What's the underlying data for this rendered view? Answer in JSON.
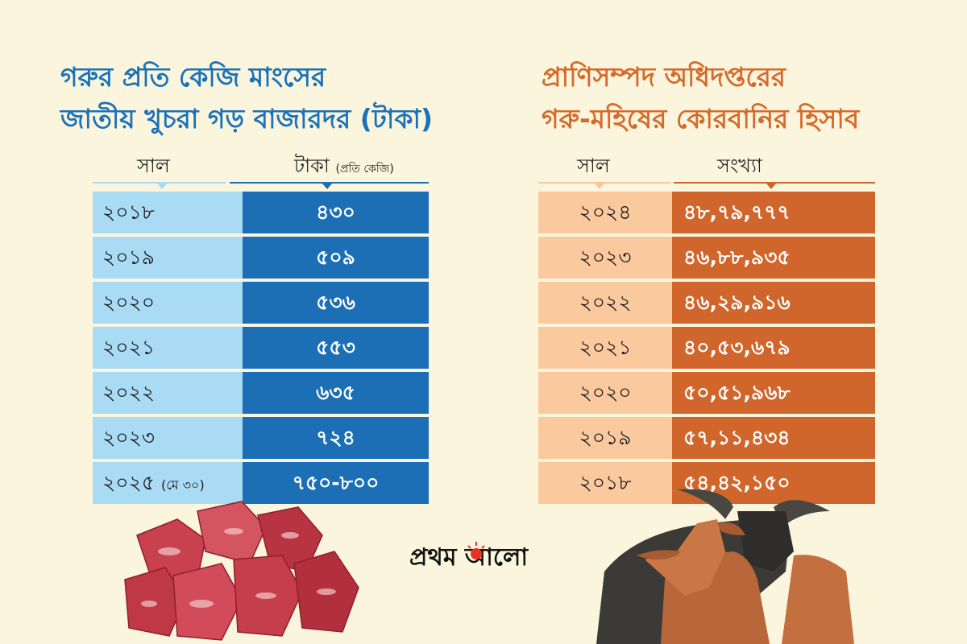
{
  "left_title": {
    "line1": "গরুর প্রতি কেজি মাংসের",
    "line2": "জাতীয় খুচরা গড় বাজারদর (টাকা)"
  },
  "left_table": {
    "col_year": "সাল",
    "col_price": "টাকা",
    "col_price_unit": "(প্রতি কেজি)",
    "rows": [
      {
        "year": "২০১৮",
        "note": "",
        "value": "৪৩০"
      },
      {
        "year": "২০১৯",
        "note": "",
        "value": "৫০৯"
      },
      {
        "year": "২০২০",
        "note": "",
        "value": "৫৩৬"
      },
      {
        "year": "২০২১",
        "note": "",
        "value": "৫৫৩"
      },
      {
        "year": "২০২২",
        "note": "",
        "value": "৬৩৫"
      },
      {
        "year": "২০২৩",
        "note": "",
        "value": "৭২৪"
      },
      {
        "year": "২০২৫",
        "note": "(মে ৩০)",
        "value": "৭৫০-৮০০"
      }
    ]
  },
  "right_title": {
    "line1": "প্রাণিসম্পদ অধিদপ্তরের",
    "line2": "গরু-মহিষের কোরবানির হিসাব"
  },
  "right_table": {
    "col_year": "সাল",
    "col_count": "সংখ্যা",
    "rows": [
      {
        "year": "২০২৪",
        "value": "৪৮,৭৯,৭৭৭"
      },
      {
        "year": "২০২৩",
        "value": "৪৬,৮৮,৯৩৫"
      },
      {
        "year": "২০২২",
        "value": "৪৬,২৯,৯১৬"
      },
      {
        "year": "২০২১",
        "value": "৪০,৫৩,৬৭৯"
      },
      {
        "year": "২০২০",
        "value": "৫০,৫১,৯৬৮"
      },
      {
        "year": "২০১৯",
        "value": "৫৭,১১,৪৩৪"
      },
      {
        "year": "২০১৮",
        "value": "৫৪,৪২,১৫০"
      }
    ]
  },
  "logo": {
    "text": "প্রথম আলো"
  },
  "colors": {
    "background": "#fbf5de",
    "blue_title": "#1a72b8",
    "blue_dark": "#1d6fb5",
    "blue_light": "#a9dbf4",
    "orange_title": "#d56a2a",
    "orange_dark": "#d0662b",
    "orange_light": "#fbc99e"
  },
  "images": {
    "left": "beef-cubes",
    "right": "cow-and-buffalo",
    "logo_mark": "sun-icon"
  }
}
